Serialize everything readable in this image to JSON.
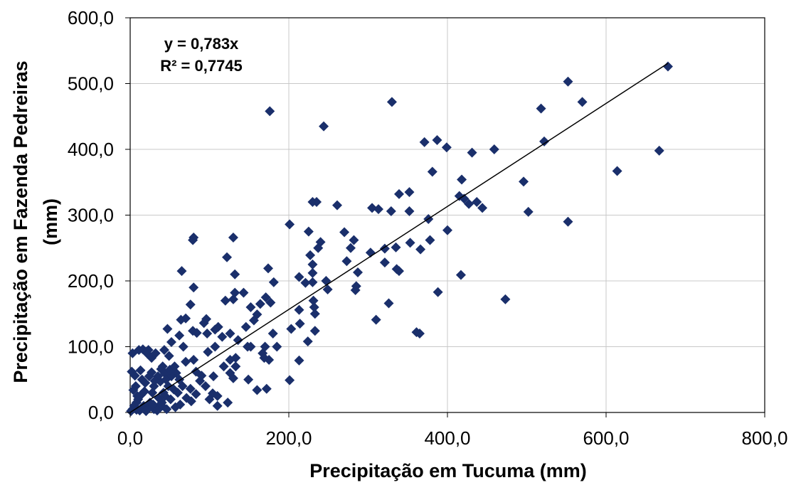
{
  "chart_data": {
    "type": "scatter",
    "xlabel": "Precipitação em Tucuma (mm)",
    "ylabel_line1": "Precipitação em Fazenda Pedreiras",
    "ylabel_line2": "(mm)",
    "xlim": [
      0,
      800
    ],
    "ylim": [
      0,
      600
    ],
    "x_ticks": [
      "0,0",
      "200,0",
      "400,0",
      "600,0",
      "800,0"
    ],
    "y_ticks": [
      "0,0",
      "100,0",
      "200,0",
      "300,0",
      "400,0",
      "500,0",
      "600,0"
    ],
    "grid": true,
    "marker": "diamond",
    "marker_color": "#1a2f6b",
    "trendline": {
      "slope": 0.783,
      "x_range": [
        0,
        678
      ]
    },
    "equation_line1": "y = 0,783x",
    "equation_line2": "R² = 0,7745",
    "points": [
      [
        678,
        526
      ],
      [
        552,
        503
      ],
      [
        570,
        472
      ],
      [
        330,
        472
      ],
      [
        176,
        458
      ],
      [
        244,
        435
      ],
      [
        518,
        462
      ],
      [
        522,
        412
      ],
      [
        387,
        414
      ],
      [
        371,
        411
      ],
      [
        399,
        403
      ],
      [
        431,
        395
      ],
      [
        459,
        400
      ],
      [
        667,
        398
      ],
      [
        614,
        367
      ],
      [
        381,
        366
      ],
      [
        418,
        354
      ],
      [
        496,
        351
      ],
      [
        421,
        325
      ],
      [
        437,
        320
      ],
      [
        415,
        329
      ],
      [
        444,
        311
      ],
      [
        427,
        317
      ],
      [
        502,
        305
      ],
      [
        552,
        290
      ],
      [
        352,
        335
      ],
      [
        339,
        332
      ],
      [
        352,
        306
      ],
      [
        329,
        306
      ],
      [
        305,
        311
      ],
      [
        313,
        309
      ],
      [
        235,
        320
      ],
      [
        230,
        320
      ],
      [
        261,
        315
      ],
      [
        201,
        286
      ],
      [
        376,
        294
      ],
      [
        400,
        277
      ],
      [
        270,
        274
      ],
      [
        225,
        275
      ],
      [
        282,
        262
      ],
      [
        278,
        250
      ],
      [
        240,
        259
      ],
      [
        237,
        250
      ],
      [
        378,
        262
      ],
      [
        366,
        248
      ],
      [
        353,
        258
      ],
      [
        335,
        251
      ],
      [
        321,
        249
      ],
      [
        303,
        243
      ],
      [
        321,
        228
      ],
      [
        273,
        230
      ],
      [
        227,
        239
      ],
      [
        230,
        225
      ],
      [
        230,
        212
      ],
      [
        336,
        218
      ],
      [
        339,
        215
      ],
      [
        287,
        213
      ],
      [
        213,
        206
      ],
      [
        221,
        197
      ],
      [
        247,
        200
      ],
      [
        230,
        198
      ],
      [
        285,
        192
      ],
      [
        80,
        266
      ],
      [
        79,
        262
      ],
      [
        130,
        266
      ],
      [
        122,
        236
      ],
      [
        65,
        215
      ],
      [
        132,
        210
      ],
      [
        174,
        219
      ],
      [
        417,
        209
      ],
      [
        388,
        183
      ],
      [
        473,
        172
      ],
      [
        310,
        141
      ],
      [
        326,
        166
      ],
      [
        284,
        186
      ],
      [
        249,
        187
      ],
      [
        231,
        170
      ],
      [
        232,
        160
      ],
      [
        233,
        150
      ],
      [
        213,
        156
      ],
      [
        214,
        135
      ],
      [
        233,
        124
      ],
      [
        224,
        108
      ],
      [
        203,
        127
      ],
      [
        213,
        79
      ],
      [
        201,
        49
      ],
      [
        361,
        122
      ],
      [
        365,
        120
      ],
      [
        181,
        198
      ],
      [
        177,
        167
      ],
      [
        171,
        175
      ],
      [
        143,
        182
      ],
      [
        132,
        182
      ],
      [
        130,
        172
      ],
      [
        120,
        170
      ],
      [
        164,
        165
      ],
      [
        152,
        160
      ],
      [
        160,
        149
      ],
      [
        146,
        130
      ],
      [
        156,
        140
      ],
      [
        180,
        120
      ],
      [
        126,
        120
      ],
      [
        111,
        130
      ],
      [
        96,
        142
      ],
      [
        97,
        120
      ],
      [
        107,
        126
      ],
      [
        116,
        115
      ],
      [
        136,
        110
      ],
      [
        107,
        100
      ],
      [
        80,
        190
      ],
      [
        76,
        164
      ],
      [
        70,
        143
      ],
      [
        64,
        141
      ],
      [
        79,
        124
      ],
      [
        84,
        121
      ],
      [
        93,
        136
      ],
      [
        62,
        117
      ],
      [
        52,
        107
      ],
      [
        47,
        127
      ],
      [
        67,
        100
      ],
      [
        98,
        92
      ],
      [
        80,
        80
      ],
      [
        70,
        77
      ],
      [
        83,
        62
      ],
      [
        58,
        60
      ],
      [
        41,
        70
      ],
      [
        44,
        59
      ],
      [
        52,
        55
      ],
      [
        38,
        47
      ],
      [
        62,
        50
      ],
      [
        66,
        40
      ],
      [
        76,
        36
      ],
      [
        95,
        40
      ],
      [
        126,
        60
      ],
      [
        130,
        52
      ],
      [
        133,
        83
      ],
      [
        133,
        70
      ],
      [
        149,
        50
      ],
      [
        160,
        34
      ],
      [
        172,
        36
      ],
      [
        175,
        80
      ],
      [
        170,
        100
      ],
      [
        167,
        90
      ],
      [
        185,
        100
      ],
      [
        148,
        100
      ],
      [
        152,
        100
      ],
      [
        169,
        83
      ],
      [
        126,
        80
      ],
      [
        118,
        70
      ],
      [
        105,
        55
      ],
      [
        104,
        29
      ],
      [
        100,
        20
      ],
      [
        110,
        10
      ],
      [
        123,
        15
      ],
      [
        110,
        25
      ],
      [
        40,
        10
      ],
      [
        30,
        5
      ],
      [
        16,
        96
      ],
      [
        20,
        92
      ],
      [
        22,
        89
      ],
      [
        27,
        83
      ],
      [
        23,
        95
      ],
      [
        3,
        90
      ],
      [
        11,
        95
      ],
      [
        43,
        95
      ],
      [
        32,
        90
      ],
      [
        49,
        86
      ],
      [
        39,
        66
      ],
      [
        35,
        55
      ],
      [
        30,
        40
      ],
      [
        28,
        30
      ],
      [
        27,
        61
      ],
      [
        19,
        45
      ],
      [
        14,
        27
      ],
      [
        10,
        20
      ],
      [
        8,
        15
      ],
      [
        5,
        10
      ],
      [
        3,
        5
      ],
      [
        1,
        2
      ],
      [
        2,
        62
      ],
      [
        6,
        56
      ],
      [
        13,
        64
      ],
      [
        4,
        34
      ],
      [
        18,
        32
      ],
      [
        25,
        15
      ],
      [
        36,
        22
      ],
      [
        44,
        25
      ],
      [
        51,
        20
      ],
      [
        57,
        8
      ],
      [
        63,
        12
      ],
      [
        71,
        22
      ],
      [
        77,
        17
      ],
      [
        83,
        28
      ],
      [
        88,
        48
      ],
      [
        90,
        56
      ],
      [
        60,
        30
      ],
      [
        55,
        35
      ],
      [
        48,
        40
      ],
      [
        42,
        30
      ],
      [
        40,
        15
      ],
      [
        35,
        8
      ],
      [
        29,
        12
      ],
      [
        22,
        6
      ],
      [
        17,
        10
      ],
      [
        12,
        3
      ],
      [
        9,
        25
      ],
      [
        7,
        40
      ],
      [
        15,
        50
      ],
      [
        24,
        55
      ],
      [
        31,
        48
      ],
      [
        45,
        50
      ],
      [
        50,
        65
      ],
      [
        56,
        70
      ],
      [
        8,
        4
      ],
      [
        20,
        2
      ],
      [
        34,
        3
      ],
      [
        46,
        5
      ]
    ]
  }
}
